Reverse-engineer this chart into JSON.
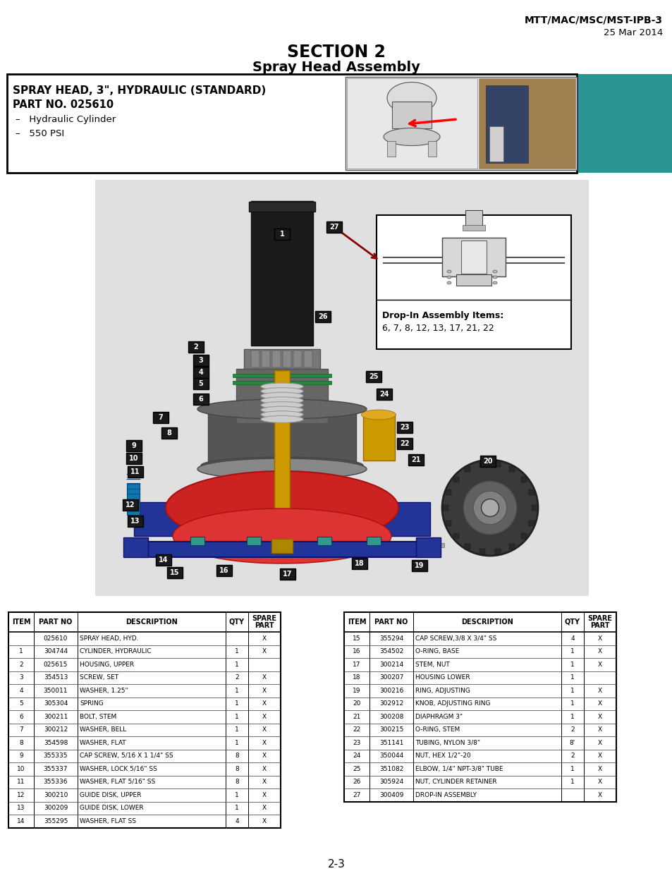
{
  "page_title_line1": "MTT/MAC/MSC/MST-IPB-3",
  "page_title_line2": "25 Mar 2014",
  "section_title": "SECTION 2",
  "section_subtitle": "Spray Head Assembly",
  "box_title": "SPRAY HEAD, 3\", HYDRAULIC (STANDARD)",
  "part_no": "PART NO. 025610",
  "bullet1": "Hydraulic Cylinder",
  "bullet2": "550 PSI",
  "drop_in_title": "Drop-In Assembly Items:",
  "drop_in_items": "6, 7, 8, 12, 13, 17, 21, 22",
  "page_number": "2-3",
  "table1_headers": [
    "ITEM",
    "PART NO",
    "DESCRIPTION",
    "QTY",
    "SPARE\nPART"
  ],
  "table2_headers": [
    "ITEM",
    "PART NO",
    "DESCRIPTION",
    "QTY",
    "SPARE\nPART"
  ],
  "table1_rows": [
    [
      "",
      "025610",
      "SPRAY HEAD, HYD.",
      "",
      "X"
    ],
    [
      "1",
      "304744",
      "CYLINDER, HYDRAULIC",
      "1",
      "X"
    ],
    [
      "2",
      "025615",
      "HOUSING, UPPER",
      "1",
      ""
    ],
    [
      "3",
      "354513",
      "SCREW, SET",
      "2",
      "X"
    ],
    [
      "4",
      "350011",
      "WASHER, 1.25\"",
      "1",
      "X"
    ],
    [
      "5",
      "305304",
      "SPRING",
      "1",
      "X"
    ],
    [
      "6",
      "300211",
      "BOLT, STEM",
      "1",
      "X"
    ],
    [
      "7",
      "300212",
      "WASHER, BELL",
      "1",
      "X"
    ],
    [
      "8",
      "354598",
      "WASHER, FLAT",
      "1",
      "X"
    ],
    [
      "9",
      "355335",
      "CAP SCREW, 5/16 X 1 1/4\" SS",
      "8",
      "X"
    ],
    [
      "10",
      "355337",
      "WASHER, LOCK 5/16\" SS",
      "8",
      "X"
    ],
    [
      "11",
      "355336",
      "WASHER, FLAT 5/16\" SS",
      "8",
      "X"
    ],
    [
      "12",
      "300210",
      "GUIDE DISK, UPPER",
      "1",
      "X"
    ],
    [
      "13",
      "300209",
      "GUIDE DISK, LOWER",
      "1",
      "X"
    ],
    [
      "14",
      "355295",
      "WASHER, FLAT SS",
      "4",
      "X"
    ]
  ],
  "table2_rows": [
    [
      "15",
      "355294",
      "CAP SCREW,3/8 X 3/4\" SS",
      "4",
      "X"
    ],
    [
      "16",
      "354502",
      "O-RING, BASE",
      "1",
      "X"
    ],
    [
      "17",
      "300214",
      "STEM, NUT",
      "1",
      "X"
    ],
    [
      "18",
      "300207",
      "HOUSING LOWER",
      "1",
      ""
    ],
    [
      "19",
      "300216",
      "RING, ADJUSTING",
      "1",
      "X"
    ],
    [
      "20",
      "302912",
      "KNOB, ADJUSTING RING",
      "1",
      "X"
    ],
    [
      "21",
      "300208",
      "DIAPHRAGM 3\"",
      "1",
      "X"
    ],
    [
      "22",
      "300215",
      "O-RING, STEM",
      "2",
      "X"
    ],
    [
      "23",
      "351141",
      "TUBING, NYLON 3/8\"",
      "8'",
      "X"
    ],
    [
      "24",
      "350044",
      "NUT, HEX 1/2\"-20",
      "2",
      "X"
    ],
    [
      "25",
      "351082",
      "ELBOW, 1/4\" NPT-3/8\" TUBE",
      "1",
      "X"
    ],
    [
      "26",
      "305924",
      "NUT, CYLINDER RETAINER",
      "1",
      "X"
    ],
    [
      "27",
      "300409",
      "DROP-IN ASSEMBLY",
      "",
      "X"
    ]
  ],
  "bg_color": "#ffffff",
  "teal_color": "#2B9494",
  "diagram_bg": "#e0e0e0",
  "dark_gray": "#333333",
  "mid_gray": "#666666",
  "light_gray": "#999999",
  "red_part": "#cc2222",
  "dark_red": "#aa1111",
  "blue_part": "#223399",
  "dark_blue": "#111166",
  "gold_part": "#cc9900",
  "dark_gold": "#996600",
  "black_cyl": "#1a1a1a",
  "green_oring": "#228844"
}
